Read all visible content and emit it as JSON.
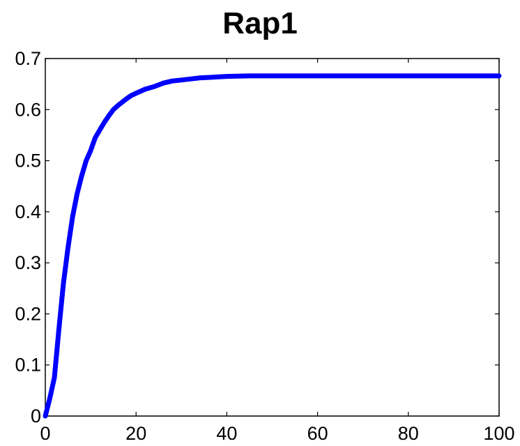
{
  "chart_data": {
    "type": "line",
    "title": "Rap1",
    "xlabel": "",
    "ylabel": "",
    "xlim": [
      0,
      100
    ],
    "ylim": [
      0,
      0.7
    ],
    "grid": false,
    "x_ticks": [
      "0",
      "20",
      "40",
      "60",
      "80",
      "100"
    ],
    "y_ticks": [
      "0",
      "0.1",
      "0.2",
      "0.3",
      "0.4",
      "0.5",
      "0.6",
      "0.7"
    ],
    "series": [
      {
        "color": "#0000ff",
        "x": [
          0,
          1,
          2,
          3,
          4,
          5,
          6,
          7,
          8,
          9,
          10,
          11,
          12,
          13,
          14,
          15,
          16,
          17,
          18,
          19,
          20,
          22,
          24,
          26,
          28,
          30,
          32,
          34,
          36,
          38,
          40,
          45,
          50,
          55,
          60,
          70,
          80,
          90,
          100
        ],
        "y": [
          0,
          0.035,
          0.075,
          0.17,
          0.26,
          0.33,
          0.39,
          0.435,
          0.47,
          0.5,
          0.52,
          0.545,
          0.56,
          0.575,
          0.588,
          0.6,
          0.608,
          0.615,
          0.622,
          0.628,
          0.632,
          0.64,
          0.645,
          0.652,
          0.656,
          0.658,
          0.66,
          0.662,
          0.663,
          0.664,
          0.665,
          0.666,
          0.666,
          0.666,
          0.666,
          0.666,
          0.666,
          0.666,
          0.666
        ]
      }
    ]
  }
}
